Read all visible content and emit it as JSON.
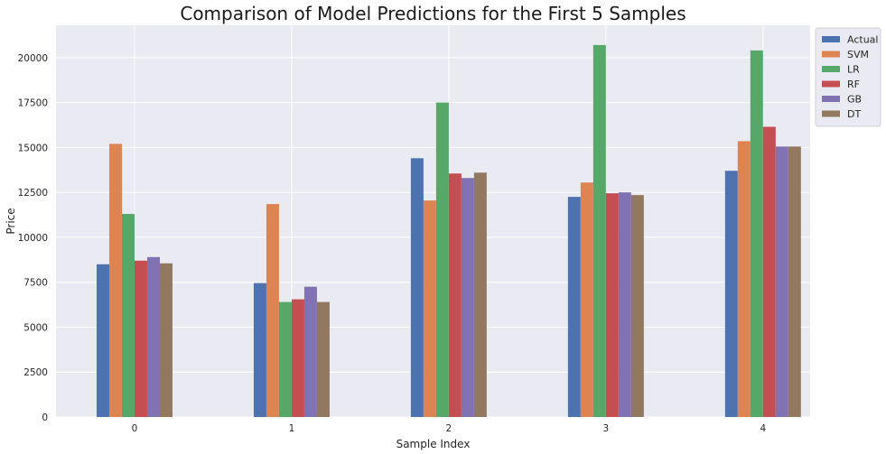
{
  "chart_data": {
    "type": "bar",
    "title": "Comparison of Model Predictions for the First 5 Samples",
    "xlabel": "Sample Index",
    "ylabel": "Price",
    "categories": [
      "0",
      "1",
      "2",
      "3",
      "4"
    ],
    "ylim": [
      0,
      21800
    ],
    "yticks": [
      0,
      2500,
      5000,
      7500,
      10000,
      12500,
      15000,
      17500,
      20000
    ],
    "grid": true,
    "legend_position": "top-right-outside",
    "series": [
      {
        "name": "Actual",
        "color": "#4c72b0",
        "values": [
          8500,
          7450,
          14400,
          12250,
          13700
        ]
      },
      {
        "name": "SVM",
        "color": "#dd8452",
        "values": [
          15200,
          11850,
          12050,
          13050,
          15350
        ]
      },
      {
        "name": "LR",
        "color": "#55a868",
        "values": [
          11300,
          6400,
          17500,
          20700,
          20400
        ]
      },
      {
        "name": "RF",
        "color": "#c44e52",
        "values": [
          8700,
          6550,
          13550,
          12450,
          16150
        ]
      },
      {
        "name": "GB",
        "color": "#8172b3",
        "values": [
          8900,
          7250,
          13300,
          12500,
          15050
        ]
      },
      {
        "name": "DT",
        "color": "#937860",
        "values": [
          8550,
          6400,
          13600,
          12350,
          15050
        ]
      }
    ]
  }
}
